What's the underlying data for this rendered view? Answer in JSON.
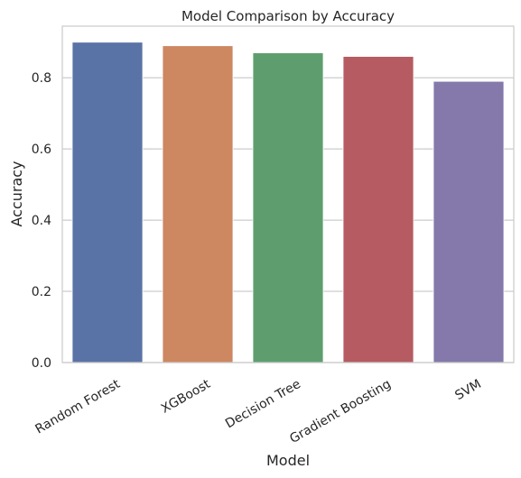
{
  "chart_data": {
    "type": "bar",
    "title": "Model Comparison by Accuracy",
    "xlabel": "Model",
    "ylabel": "Accuracy",
    "categories": [
      "Random Forest",
      "XGBoost",
      "Decision Tree",
      "Gradient Boosting",
      "SVM"
    ],
    "values": [
      0.9,
      0.89,
      0.87,
      0.86,
      0.79
    ],
    "colors": [
      "#5a73a6",
      "#cd8761",
      "#5e9e6e",
      "#b65b61",
      "#8479aa"
    ],
    "ylim": [
      0,
      0.945
    ],
    "yticks": [
      0.0,
      0.2,
      0.4,
      0.6,
      0.8
    ],
    "ytick_labels": [
      "0.0",
      "0.2",
      "0.4",
      "0.6",
      "0.8"
    ],
    "grid": "y",
    "legend": "none",
    "style": {
      "background": "#ffffff",
      "gridline_color": "#cccccc",
      "frame_color": "#cccccc",
      "text_color": "#262626"
    }
  }
}
